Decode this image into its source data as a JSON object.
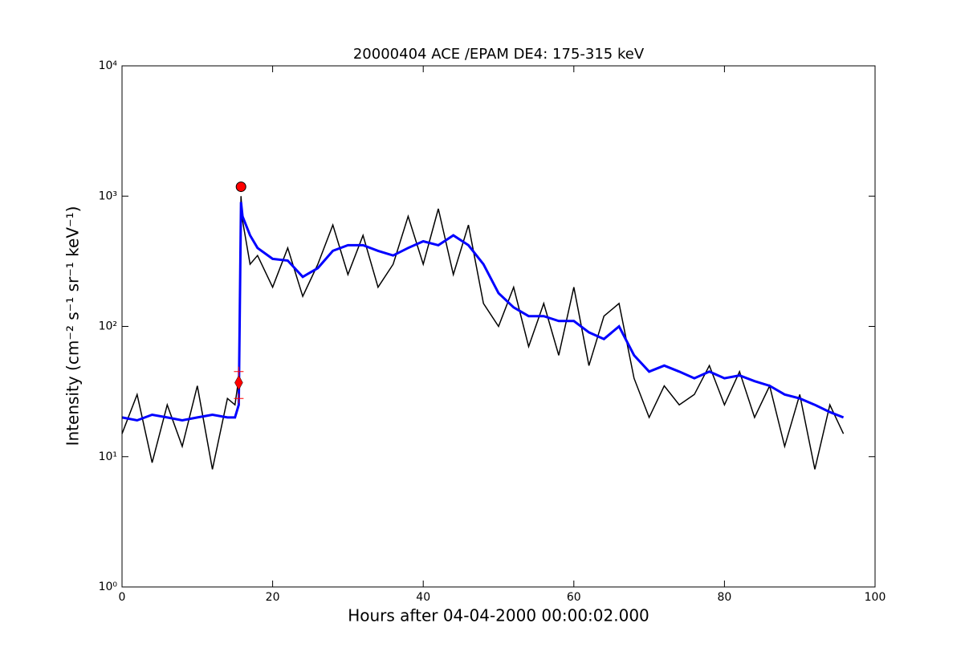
{
  "chart_data": {
    "type": "line",
    "title": "20000404 ACE /EPAM DE4: 175-315 keV",
    "x_label": "Hours after 04-04-2000 00:00:02.000",
    "y_label": "Intensity (cm⁻² s⁻¹ sr⁻¹ keV⁻¹)",
    "log_y": true,
    "xlim": [
      0,
      100
    ],
    "ylim": [
      1,
      10000
    ],
    "xticks": [
      0,
      20,
      40,
      60,
      80,
      100
    ],
    "yticks": [
      {
        "value": 1,
        "label": "10⁰"
      },
      {
        "value": 10,
        "label": "10¹"
      },
      {
        "value": 100,
        "label": "10²"
      },
      {
        "value": 1000,
        "label": "10³"
      },
      {
        "value": 10000,
        "label": "10⁴"
      }
    ],
    "x": [
      0,
      2,
      4,
      6,
      8,
      10,
      12,
      14,
      15,
      15.5,
      15.8,
      16,
      17,
      18,
      20,
      22,
      24,
      26,
      28,
      30,
      32,
      34,
      36,
      38,
      40,
      42,
      44,
      46,
      48,
      50,
      52,
      54,
      56,
      58,
      60,
      62,
      64,
      66,
      68,
      70,
      72,
      74,
      76,
      78,
      80,
      82,
      84,
      86,
      88,
      90,
      92,
      94,
      95.8
    ],
    "series": [
      {
        "color": "#000000",
        "values": [
          15,
          30,
          9,
          25,
          12,
          35,
          8,
          28,
          25,
          40,
          1000,
          650,
          300,
          350,
          200,
          400,
          170,
          300,
          600,
          250,
          500,
          200,
          300,
          700,
          300,
          800,
          250,
          600,
          150,
          100,
          200,
          70,
          150,
          60,
          200,
          50,
          120,
          150,
          40,
          20,
          35,
          25,
          30,
          50,
          25,
          45,
          20,
          35,
          12,
          30,
          8,
          25,
          15
        ]
      },
      {
        "color": "#0000ff",
        "values": [
          20,
          19,
          21,
          20,
          19,
          20,
          21,
          20,
          20,
          25,
          900,
          700,
          500,
          400,
          330,
          320,
          240,
          280,
          380,
          420,
          420,
          380,
          350,
          400,
          450,
          420,
          500,
          420,
          300,
          180,
          140,
          120,
          120,
          110,
          110,
          90,
          80,
          100,
          60,
          45,
          50,
          45,
          40,
          45,
          40,
          42,
          38,
          35,
          30,
          28,
          25,
          22,
          20
        ]
      }
    ],
    "markers": [
      {
        "x": 15.8,
        "y": 1180,
        "shape": "circle",
        "color": "#ff0000"
      },
      {
        "x": 15.5,
        "y": 37,
        "shape": "diamond",
        "color": "#ff0000"
      },
      {
        "x": 15.5,
        "y": 45,
        "shape": "cross",
        "color": "#ff0000"
      },
      {
        "x": 15.5,
        "y": 28,
        "shape": "cross",
        "color": "#ff0000"
      }
    ]
  }
}
